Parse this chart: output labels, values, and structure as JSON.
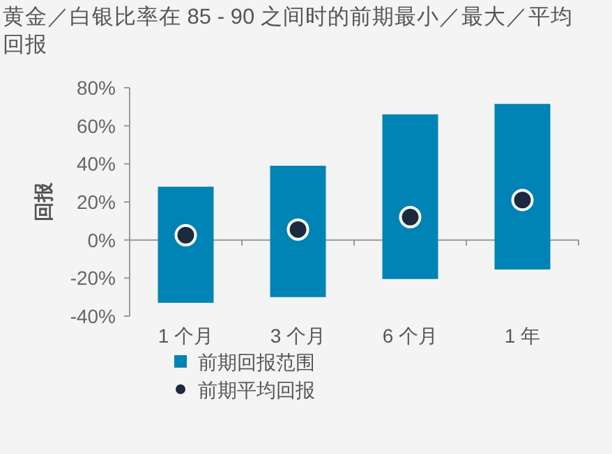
{
  "chart_data": {
    "type": "bar",
    "title": "黄金／白银比率在 85 - 90 之间时的前期最小／最大／平均回报",
    "ylabel": "回报",
    "categories": [
      "1 个月",
      "3 个月",
      "6 个月",
      "1 年"
    ],
    "series": [
      {
        "name": "前期回报范围",
        "color": "#0083b5",
        "base": [
          -33,
          -30,
          -20.5,
          -15.5
        ],
        "values": [
          61,
          69,
          86.5,
          87
        ]
      },
      {
        "name": "前期平均回报",
        "type": "scatter",
        "marker": "circle",
        "color": "#1b2a3e",
        "x": [
          "1 个月",
          "3 个月",
          "6 个月",
          "1 年"
        ],
        "values": [
          2.5,
          5.5,
          12,
          21
        ]
      }
    ],
    "ylim": [
      -40,
      80
    ],
    "yticks": [
      {
        "value": -40,
        "label": "-40%"
      },
      {
        "value": -20,
        "label": "-20%"
      },
      {
        "value": 0,
        "label": "0%"
      },
      {
        "value": 20,
        "label": "20%"
      },
      {
        "value": 40,
        "label": "40%"
      },
      {
        "value": 60,
        "label": "60%"
      },
      {
        "value": 80,
        "label": "80%"
      }
    ],
    "legend": "bottom"
  }
}
